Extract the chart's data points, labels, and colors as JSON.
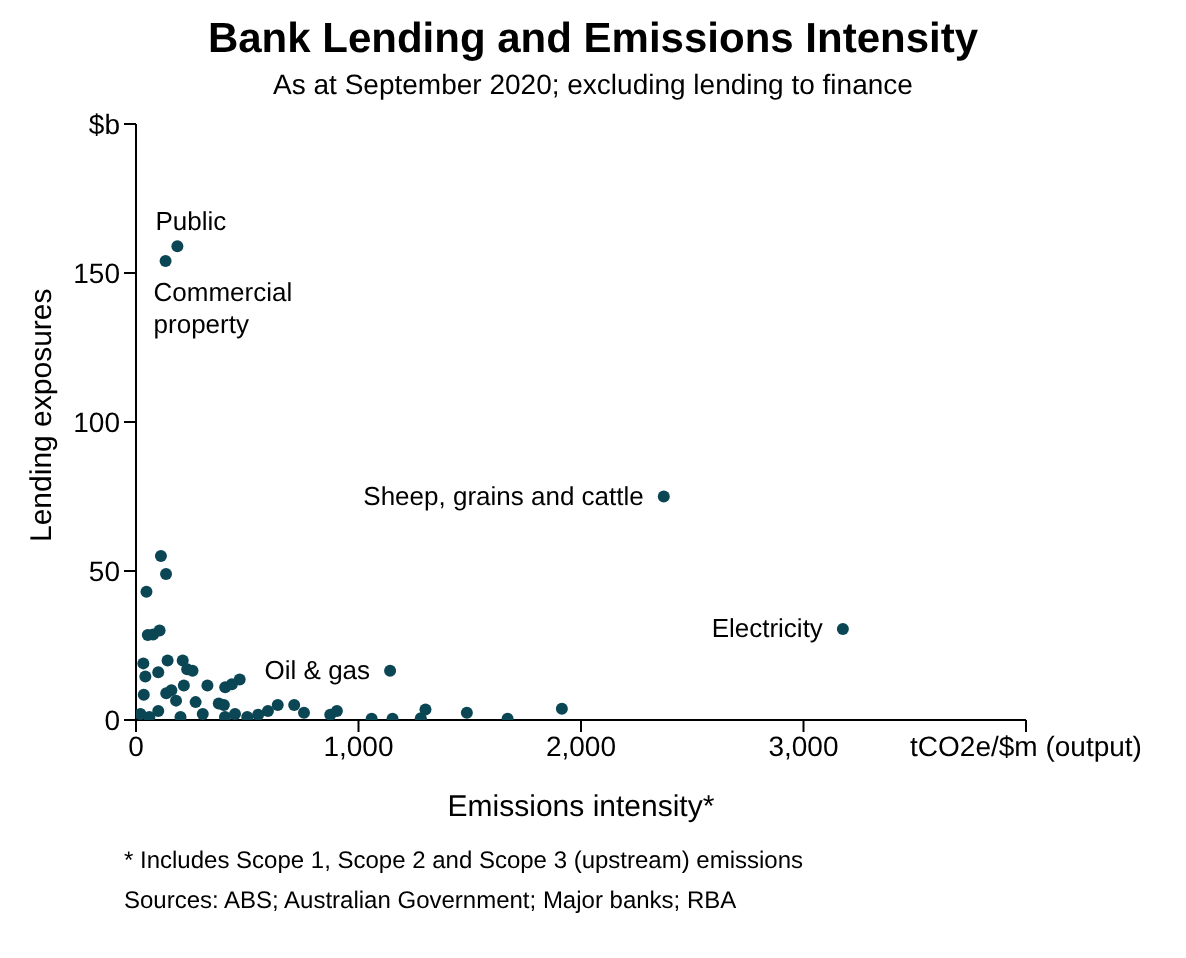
{
  "chart_data": {
    "type": "scatter",
    "title": "Bank Lending and Emissions Intensity",
    "subtitle": "As at September 2020; excluding lending to finance",
    "xlabel": "Emissions intensity*",
    "ylabel": "Lending exposures",
    "xlim": [
      0,
      4000
    ],
    "xticks": [
      0,
      {
        "value": 1000,
        "label": "1,000"
      },
      {
        "value": 2000,
        "label": "2,000"
      },
      {
        "value": 3000,
        "label": "3,000"
      },
      {
        "value": 4000,
        "label": "tCO2e/$m (output)"
      }
    ],
    "ylim": [
      0,
      200
    ],
    "yticks": [
      0,
      50,
      100,
      150,
      {
        "value": 200,
        "label": "$b"
      }
    ],
    "grid": false,
    "marker": "circle",
    "series": [
      {
        "color": "#0b4654",
        "x": [
          186,
          133,
          2372,
          3177,
          1142,
          112,
          135,
          47,
          53,
          77,
          106,
          33,
          42,
          100,
          142,
          210,
          230,
          254,
          215,
          321,
          401,
          431,
          466,
          159,
          136,
          35,
          180,
          268,
          372,
          395,
          445,
          637,
          711,
          549,
          593,
          755,
          873,
          903,
          1059,
          1153,
          1280,
          1301,
          1487,
          1670,
          1914,
          20,
          60,
          100,
          200,
          300,
          400,
          500
        ],
        "values": [
          159,
          154,
          75,
          30.5,
          16.5,
          55,
          49,
          43,
          28.5,
          28.7,
          30,
          19,
          14.6,
          16,
          20,
          20,
          17,
          16.5,
          11.6,
          11.6,
          11,
          12,
          13.6,
          10,
          9,
          8.5,
          6.5,
          6,
          5.5,
          5,
          2,
          5,
          5,
          1.8,
          3,
          2.4,
          1.8,
          3,
          0.4,
          0.4,
          0.6,
          3.5,
          2.4,
          0.4,
          3.8,
          2,
          1,
          3,
          1,
          2,
          1,
          1
        ]
      }
    ],
    "annotations": [
      {
        "text": "Public",
        "x": 186,
        "y": 159
      },
      {
        "text": "Commercial property",
        "x": 133,
        "y": 154
      },
      {
        "text": "Sheep, grains and cattle",
        "x": 2372,
        "y": 75
      },
      {
        "text": "Electricity",
        "x": 3177,
        "y": 30.5
      },
      {
        "text": "Oil & gas",
        "x": 1142,
        "y": 16.5
      },
      "* Includes Scope 1, Scope 2 and Scope 3 (upstream) emissions",
      "Sources: ABS; Australian Government; Major banks; RBA"
    ]
  }
}
